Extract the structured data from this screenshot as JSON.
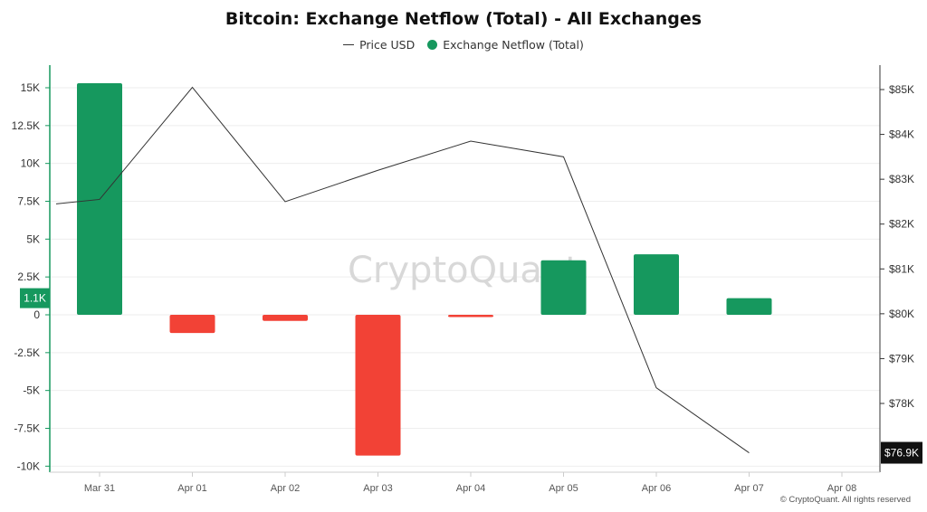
{
  "chart_data": {
    "type": "bar",
    "title": "Bitcoin: Exchange Netflow (Total) - All Exchanges",
    "watermark": "CryptoQuant",
    "copyright": "© CryptoQuant. All rights reserved",
    "categories": [
      "Mar 31",
      "Apr 01",
      "Apr 02",
      "Apr 03",
      "Apr 04",
      "Apr 05",
      "Apr 06",
      "Apr 07",
      "Apr 08"
    ],
    "legend": [
      {
        "name": "Price USD",
        "style": "line",
        "color": "#333333"
      },
      {
        "name": "Exchange Netflow (Total)",
        "style": "dot",
        "color": "#16985e"
      }
    ],
    "series": [
      {
        "name": "Exchange Netflow (Total)",
        "axis": "left",
        "type": "bar",
        "values": [
          15300,
          -1200,
          -400,
          -9300,
          -150,
          3600,
          4000,
          1100,
          null
        ]
      },
      {
        "name": "Price USD",
        "axis": "right",
        "type": "line",
        "values": [
          82450,
          82550,
          85050,
          82500,
          83200,
          83850,
          83500,
          78350,
          76900
        ]
      }
    ],
    "positive_color": "#16985e",
    "negative_color": "#f24236",
    "left_axis": {
      "ylim": [
        -10300,
        16500
      ],
      "ticks": [
        {
          "v": 15000,
          "label": "15K"
        },
        {
          "v": 12500,
          "label": "12.5K"
        },
        {
          "v": 10000,
          "label": "10K"
        },
        {
          "v": 7500,
          "label": "7.5K"
        },
        {
          "v": 5000,
          "label": "5K"
        },
        {
          "v": 2500,
          "label": "2.5K"
        },
        {
          "v": 0,
          "label": "0"
        },
        {
          "v": -2500,
          "label": "-2.5K"
        },
        {
          "v": -5000,
          "label": "-5K"
        },
        {
          "v": -7500,
          "label": "-7.5K"
        },
        {
          "v": -10000,
          "label": "-10K"
        }
      ],
      "current_label": "1.1K",
      "current_value": 1100
    },
    "right_axis": {
      "ylim": [
        76100,
        85600
      ],
      "ticks": [
        {
          "v": 85000,
          "label": "$85K"
        },
        {
          "v": 84000,
          "label": "$84K"
        },
        {
          "v": 83000,
          "label": "$83K"
        },
        {
          "v": 82000,
          "label": "$82K"
        },
        {
          "v": 81000,
          "label": "$81K"
        },
        {
          "v": 80000,
          "label": "$80K"
        },
        {
          "v": 79000,
          "label": "$79K"
        },
        {
          "v": 78000,
          "label": "$78K"
        }
      ],
      "current_label": "$76.9K",
      "current_value": 76900
    },
    "grid": true
  }
}
